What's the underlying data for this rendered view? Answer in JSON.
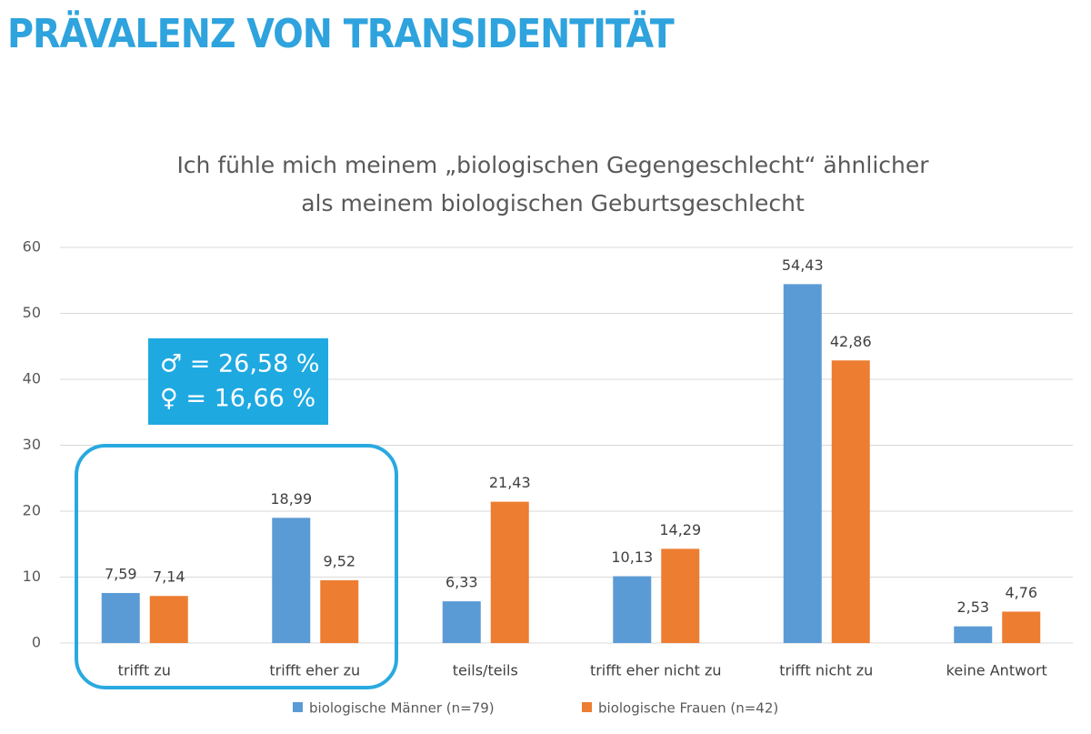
{
  "header": {
    "title": "PRÄVALENZ VON TRANSIDENTITÄT"
  },
  "chart_data": {
    "type": "bar",
    "title": [
      "Ich fühle mich meinem „biologischen Gegengeschlecht“ ähnlicher",
      "als meinem biologischen Geburtsgeschlecht"
    ],
    "categories": [
      "trifft zu",
      "trifft eher zu",
      "teils/teils",
      "trifft eher nicht zu",
      "trifft nicht zu",
      "keine Antwort"
    ],
    "series": [
      {
        "name": "biologische Männer (n=79)",
        "color": "#5b9bd5",
        "values": [
          7.59,
          18.99,
          6.33,
          10.13,
          54.43,
          2.53
        ],
        "value_labels": [
          "7,59",
          "18,99",
          "6,33",
          "10,13",
          "54,43",
          "2,53"
        ]
      },
      {
        "name": "biologische Frauen (n=42)",
        "color": "#ed7d31",
        "values": [
          7.14,
          9.52,
          21.43,
          14.29,
          42.86,
          4.76
        ],
        "value_labels": [
          "7,14",
          "9,52",
          "21,43",
          "14,29",
          "42,86",
          "4,76"
        ]
      }
    ],
    "ylim": [
      0,
      60
    ],
    "yticks": [
      0,
      10,
      20,
      30,
      40,
      50,
      60
    ],
    "grid": true,
    "legend": "bottom",
    "annotations": [
      "♂ = 26,58 %",
      "♀ = 16,66 %"
    ]
  }
}
